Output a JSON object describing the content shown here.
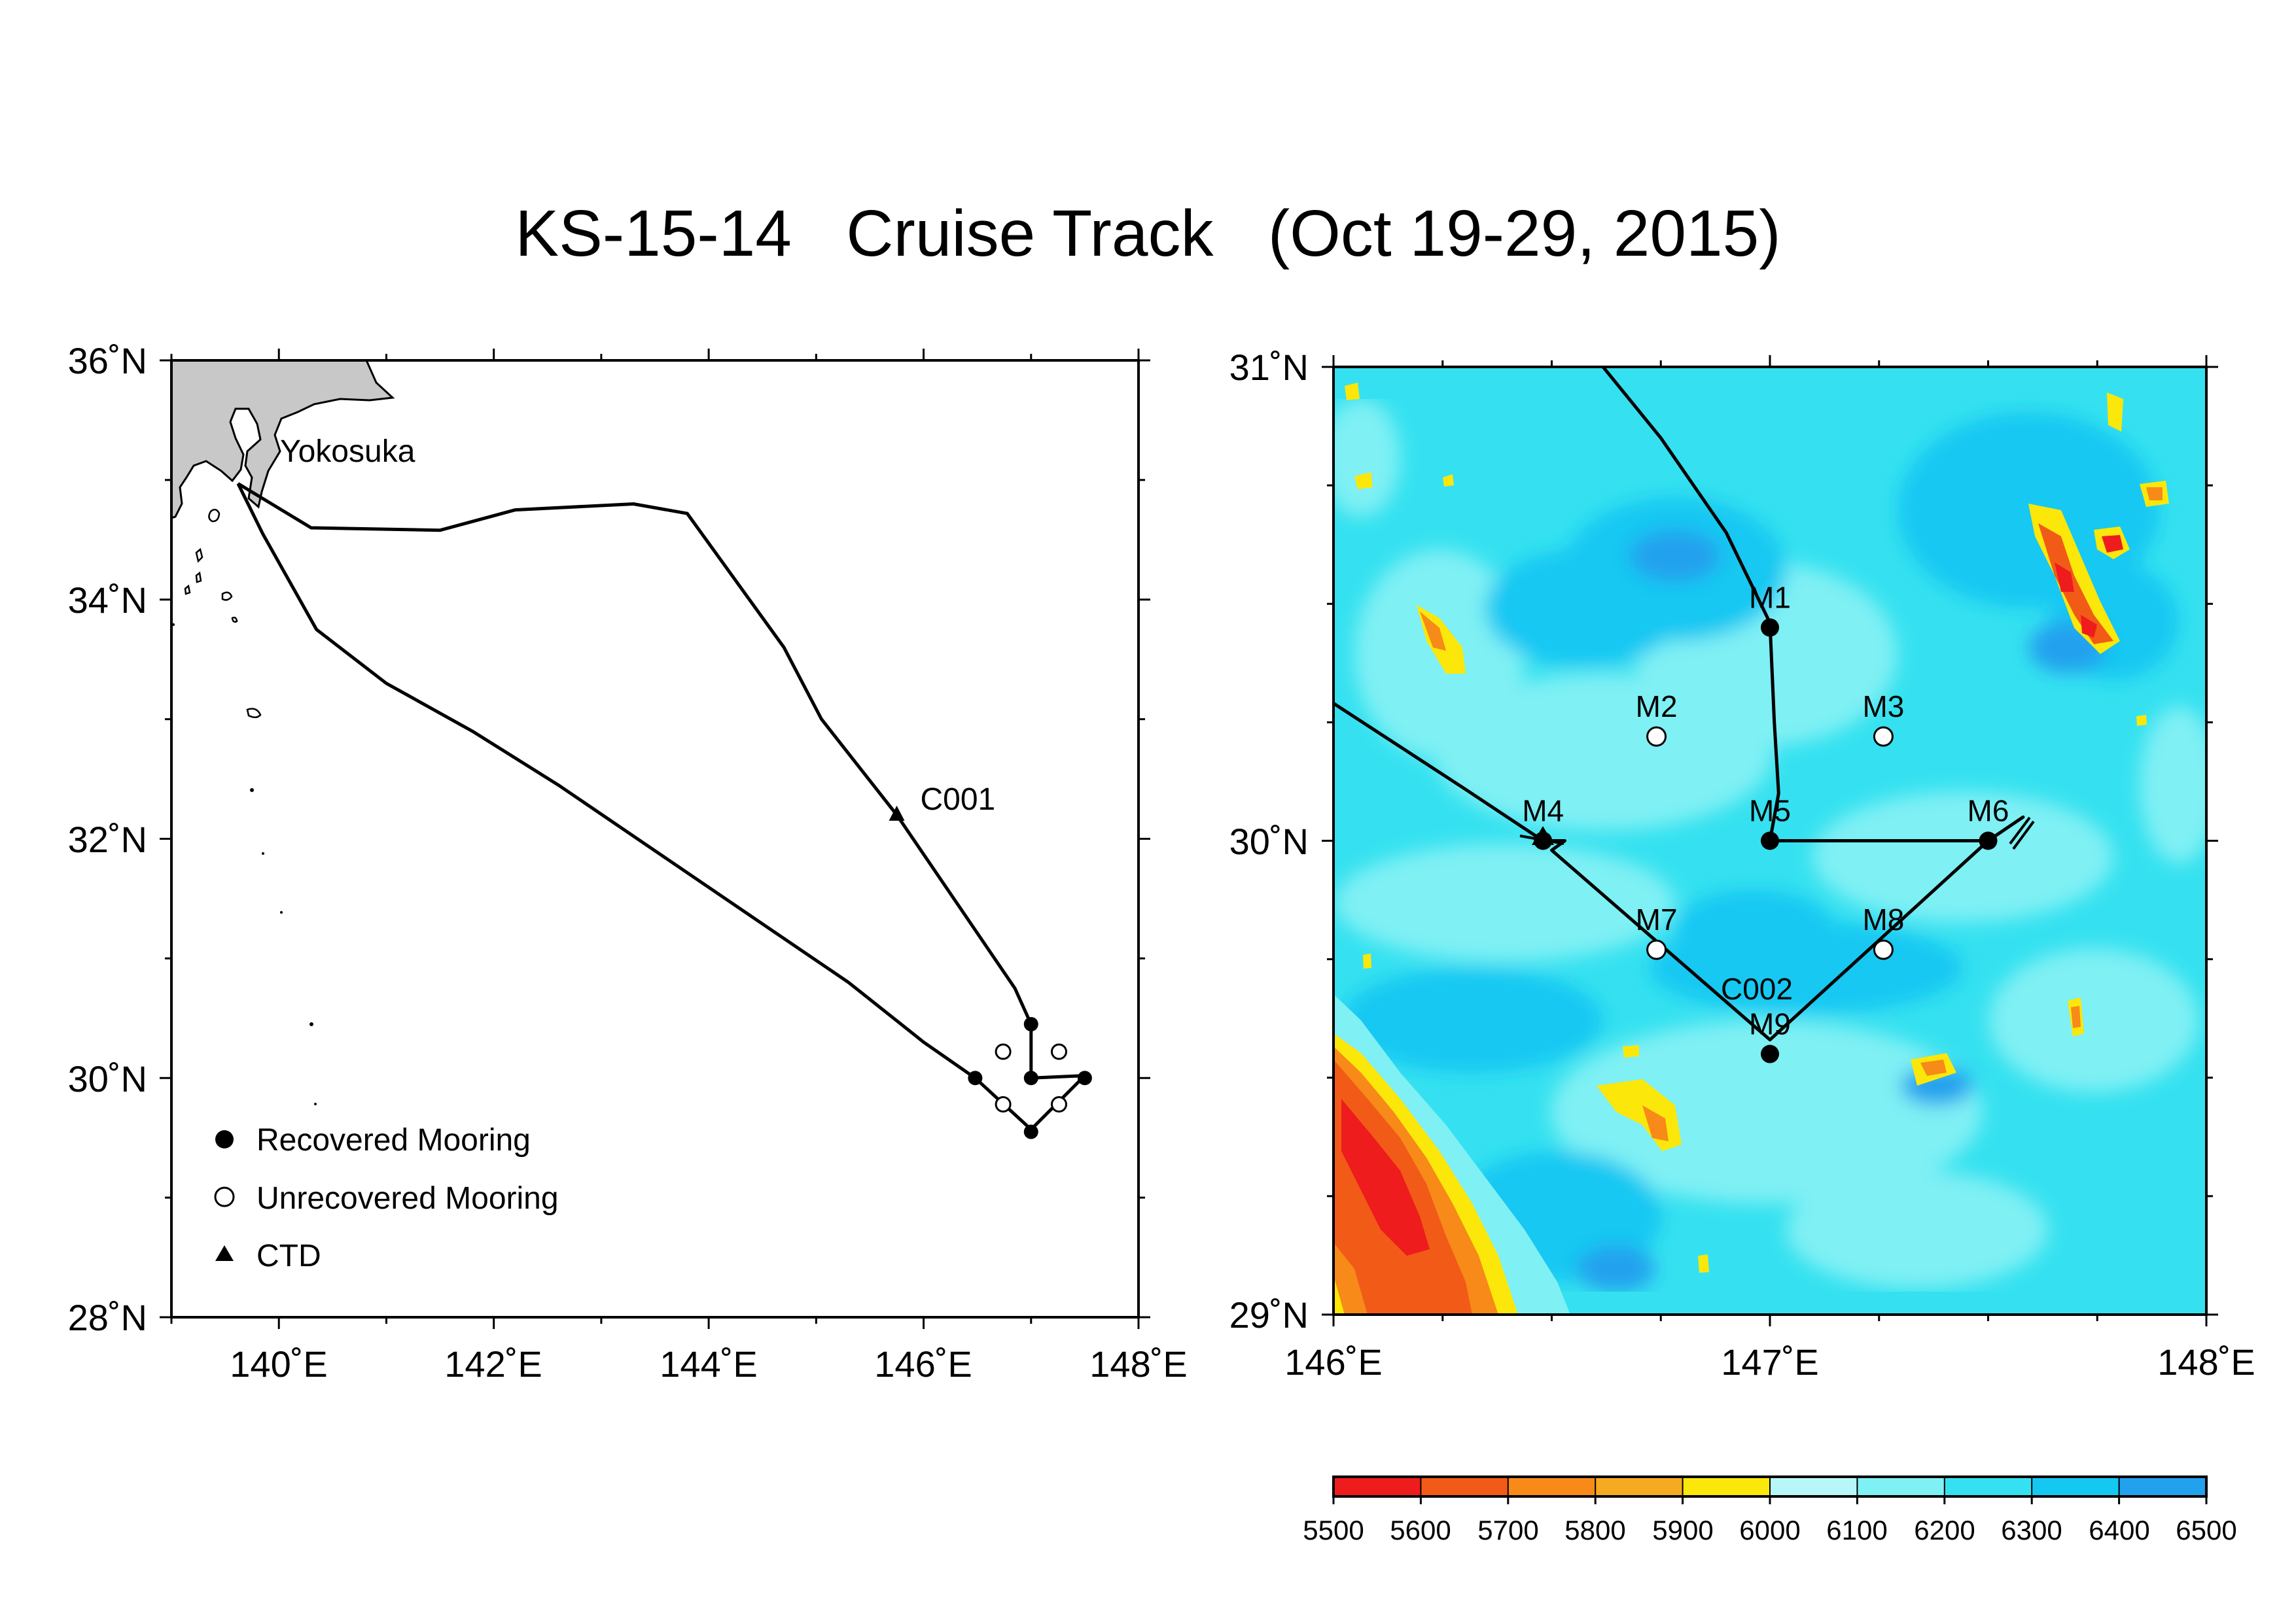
{
  "title": "KS-15-14   Cruise Track   (Oct 19-29, 2015)",
  "overview_map": {
    "lon_range": [
      139,
      148
    ],
    "lat_range": [
      28,
      36
    ],
    "lon_ticks": [
      "140˚E",
      "142˚E",
      "144˚E",
      "146˚E",
      "148˚E"
    ],
    "lat_ticks": [
      "28˚N",
      "30˚N",
      "32˚N",
      "34˚N",
      "36˚N"
    ],
    "port_label": "Yokosuka",
    "ctd_station": {
      "label": "C001",
      "lon": 145.75,
      "lat": 32.2
    },
    "outbound_track": [
      [
        139.62,
        34.97
      ],
      [
        140.3,
        34.6
      ],
      [
        141.5,
        34.58
      ],
      [
        142.2,
        34.75
      ],
      [
        143.3,
        34.8
      ],
      [
        143.8,
        34.72
      ],
      [
        144.7,
        33.6
      ],
      [
        145.05,
        33.0
      ],
      [
        145.75,
        32.2
      ],
      [
        146.85,
        30.75
      ],
      [
        147.0,
        30.45
      ],
      [
        147.0,
        30.0
      ],
      [
        147.5,
        30.02
      ],
      [
        147.0,
        29.57
      ],
      [
        146.48,
        30.0
      ]
    ],
    "return_track": [
      [
        146.48,
        30.0
      ],
      [
        146.0,
        30.3
      ],
      [
        145.3,
        30.8
      ],
      [
        144.4,
        31.35
      ],
      [
        143.5,
        31.9
      ],
      [
        142.6,
        32.45
      ],
      [
        141.8,
        32.9
      ],
      [
        141.0,
        33.3
      ],
      [
        140.35,
        33.75
      ],
      [
        139.85,
        34.55
      ],
      [
        139.62,
        34.97
      ]
    ],
    "recovered_moorings": [
      [
        147.0,
        30.45
      ],
      [
        147.0,
        30.0
      ],
      [
        147.5,
        30.0
      ],
      [
        146.48,
        30.0
      ],
      [
        147.0,
        29.55
      ]
    ],
    "unrecovered_moorings": [
      [
        146.74,
        30.22
      ],
      [
        147.26,
        30.22
      ],
      [
        146.74,
        29.78
      ],
      [
        147.26,
        29.78
      ]
    ]
  },
  "legend": {
    "recovered": "Recovered Mooring",
    "unrecovered": "Unrecovered Mooring",
    "ctd": "CTD"
  },
  "detail_map": {
    "lon_range": [
      146,
      148
    ],
    "lat_range": [
      29,
      31
    ],
    "lon_ticks": [
      "146˚E",
      "147˚E",
      "148˚E"
    ],
    "lat_ticks": [
      "29˚N",
      "30˚N",
      "31˚N"
    ],
    "ctd_label": "C002",
    "stations": [
      {
        "label": "M1",
        "lon": 147.0,
        "lat": 30.45,
        "recovered": true
      },
      {
        "label": "M2",
        "lon": 146.74,
        "lat": 30.22,
        "recovered": false
      },
      {
        "label": "M3",
        "lon": 147.26,
        "lat": 30.22,
        "recovered": false
      },
      {
        "label": "M4",
        "lon": 146.48,
        "lat": 30.0,
        "recovered": true
      },
      {
        "label": "M5",
        "lon": 147.0,
        "lat": 30.0,
        "recovered": true
      },
      {
        "label": "M6",
        "lon": 147.5,
        "lat": 30.0,
        "recovered": true
      },
      {
        "label": "M7",
        "lon": 146.74,
        "lat": 29.77,
        "recovered": false
      },
      {
        "label": "M8",
        "lon": 147.26,
        "lat": 29.77,
        "recovered": false
      },
      {
        "label": "M9",
        "lon": 147.0,
        "lat": 29.55,
        "recovered": true
      }
    ],
    "track_in": [
      [
        146.6,
        31.02
      ],
      [
        146.75,
        30.85
      ],
      [
        146.9,
        30.65
      ],
      [
        147.0,
        30.46
      ],
      [
        147.01,
        30.25
      ],
      [
        147.02,
        30.1
      ],
      [
        147.0,
        30.0
      ],
      [
        147.5,
        30.0
      ],
      [
        147.58,
        30.05
      ],
      [
        147.5,
        30.0
      ],
      [
        147.0,
        29.58
      ],
      [
        146.5,
        29.98
      ],
      [
        146.53,
        30.0
      ],
      [
        146.48,
        30.0
      ],
      [
        146.3,
        30.11
      ],
      [
        146.15,
        30.2
      ],
      [
        146.0,
        30.29
      ]
    ]
  },
  "colorbar": {
    "unit": "",
    "ticks": [
      "5500",
      "5600",
      "5700",
      "5800",
      "5900",
      "6000",
      "6100",
      "6200",
      "6300",
      "6400",
      "6500"
    ],
    "colors": [
      "#ee1c1c",
      "#f25a18",
      "#f78a18",
      "#f6aa22",
      "#fbe70a",
      "#b8f7f7",
      "#7ff0f4",
      "#35e1f0",
      "#15c8f2",
      "#22a1ee"
    ]
  }
}
